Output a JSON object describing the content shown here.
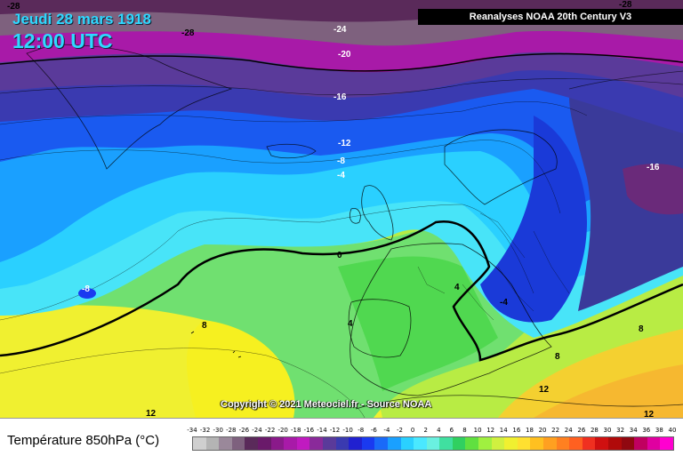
{
  "header": {
    "date": "Jeudi 28 mars 1918",
    "time": "12:00 UTC",
    "source": "Reanalyses NOAA 20th Century V3"
  },
  "footer": {
    "copyright": "Copyright © 2021 Meteociel.fr - Source NOAA",
    "legend_title": "Température 850hPa (°C)"
  },
  "map": {
    "isotherm_labels": [
      {
        "id": "m28a",
        "text": "-28"
      },
      {
        "id": "m28b",
        "text": "-28"
      },
      {
        "id": "m28c",
        "text": "-28"
      },
      {
        "id": "m24",
        "text": "-24"
      },
      {
        "id": "m20",
        "text": "-20"
      },
      {
        "id": "m16a",
        "text": "-16"
      },
      {
        "id": "m16b",
        "text": "-16"
      },
      {
        "id": "m12a",
        "text": "-12"
      },
      {
        "id": "m8a",
        "text": "-8"
      },
      {
        "id": "m4a",
        "text": "-4"
      },
      {
        "id": "z0",
        "text": "0"
      },
      {
        "id": "m8b",
        "text": "-8"
      },
      {
        "id": "p4a",
        "text": "4"
      },
      {
        "id": "p4b",
        "text": "4"
      },
      {
        "id": "m4b",
        "text": "-4"
      },
      {
        "id": "p8a",
        "text": "8"
      },
      {
        "id": "p8b",
        "text": "8"
      },
      {
        "id": "p8c",
        "text": "8"
      },
      {
        "id": "p12a",
        "text": "12"
      },
      {
        "id": "p12b",
        "text": "12"
      },
      {
        "id": "p12c",
        "text": "12"
      }
    ]
  },
  "legend": {
    "ticks": [
      "-34",
      "-32",
      "-30",
      "-28",
      "-26",
      "-24",
      "-22",
      "-20",
      "-18",
      "-16",
      "-14",
      "-12",
      "-10",
      "-8",
      "-6",
      "-4",
      "-2",
      "0",
      "2",
      "4",
      "6",
      "8",
      "10",
      "12",
      "14",
      "16",
      "18",
      "20",
      "22",
      "24",
      "26",
      "28",
      "30",
      "32",
      "34",
      "36",
      "38",
      "40"
    ],
    "colors": [
      "#cfcfcf",
      "#b4b4b4",
      "#9a889a",
      "#7e617e",
      "#5a2a5a",
      "#6a1a6a",
      "#8a1a8a",
      "#a81aa8",
      "#c01ac0",
      "#8a2a9a",
      "#5a3a9a",
      "#3a3ab0",
      "#2020d0",
      "#1a3af0",
      "#1a6af8",
      "#1aa0ff",
      "#2ad0ff",
      "#4ae8ff",
      "#6af0e0",
      "#40e0a0",
      "#30d060",
      "#60e040",
      "#a0f040",
      "#d0f040",
      "#f0f030",
      "#ffe030",
      "#ffc020",
      "#ffa020",
      "#ff8020",
      "#ff6020",
      "#f03020",
      "#d01010",
      "#b00a0a",
      "#900810",
      "#c00060",
      "#e000a0",
      "#ff00d0"
    ]
  }
}
